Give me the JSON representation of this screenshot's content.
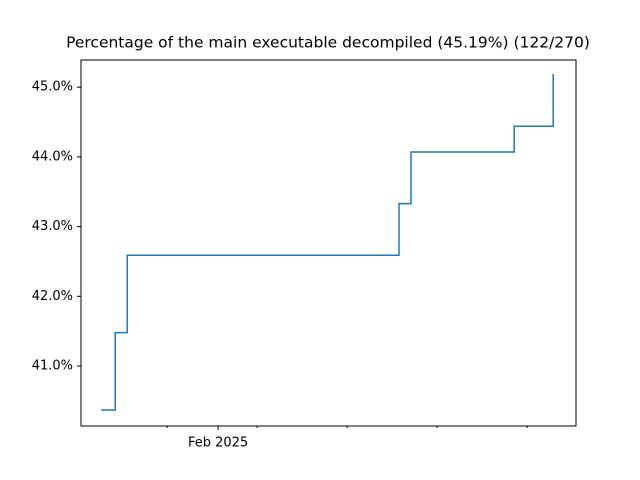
{
  "chart_data": {
    "type": "line",
    "title": "Percentage of the main executable decompiled (45.19%) (122/270)",
    "x": [
      -39,
      -34.3,
      -30.3,
      60.3,
      64.3,
      98.7,
      111.7
    ],
    "series": [
      {
        "color": "#1f77b4",
        "values": [
          40.37,
          41.48,
          42.59,
          43.33,
          44.07,
          44.44,
          45.19
        ]
      }
    ],
    "step": "post",
    "xlim": [
      -45.7,
      119.3
    ],
    "xticks": [
      {
        "value": 0,
        "label": "Feb 2025"
      }
    ],
    "xminorticks": [
      -17,
      13,
      43,
      73,
      103
    ],
    "ylim": [
      40.14,
      45.39
    ],
    "yticks": [
      {
        "value": 41,
        "label": "41.0%"
      },
      {
        "value": 42,
        "label": "42.0%"
      },
      {
        "value": 43,
        "label": "43.0%"
      },
      {
        "value": 44,
        "label": "44.0%"
      },
      {
        "value": 45,
        "label": "45.0%"
      }
    ],
    "grid": false
  }
}
